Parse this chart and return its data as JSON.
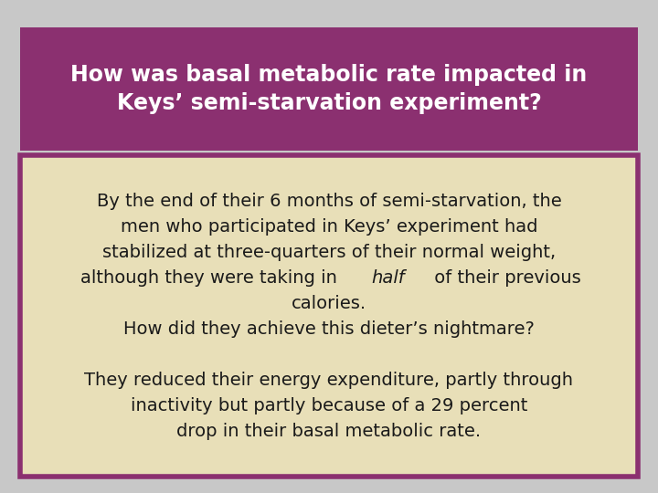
{
  "title_line1": "How was basal metabolic rate impacted in",
  "title_line2": "Keys’ semi-starvation experiment?",
  "title_bg_color": "#8B3070",
  "title_text_color": "#FFFFFF",
  "body_bg_color": "#E8DFB8",
  "body_border_color": "#8B3070",
  "body_text_color": "#1A1A1A",
  "para1_line1": "By the end of their 6 months of semi-starvation, the",
  "para1_line2": "men who participated in Keys’ experiment had",
  "para1_line3": "stabilized at three-quarters of their normal weight,",
  "para1_line4_pre": "although they were taking in ",
  "para1_line4_italic": "half",
  "para1_line4_post": " of their previous",
  "para1_line5": "calories.",
  "para1_line6": "How did they achieve this dieter’s nightmare?",
  "para2_line1": "They reduced their energy expenditure, partly through",
  "para2_line2": "inactivity but partly because of a 29 percent",
  "para2_line3": "drop in their basal metabolic rate.",
  "title_fontsize": 17,
  "body_fontsize": 14,
  "outer_bg_color": "#C8C8C8"
}
